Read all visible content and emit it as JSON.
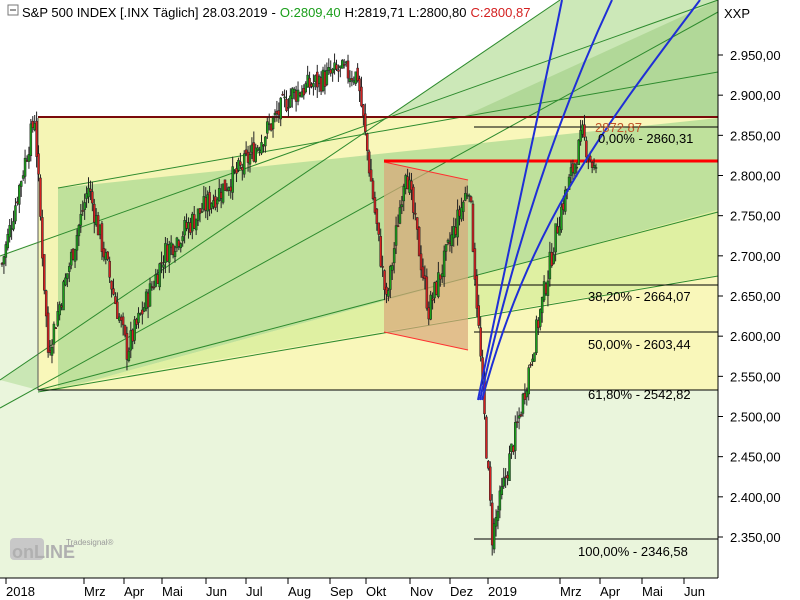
{
  "header": {
    "symbol": "S&P 500 INDEX [.INX",
    "interval": "Täglich]",
    "date": "28.03.2019",
    "open": "O:2809,40",
    "high": "H:2819,71",
    "low": "L:2800,80",
    "close": "C:2800,87",
    "exchange": "XXP"
  },
  "watermark": {
    "brand_small": "Tradesignal®",
    "brand": "onLINE"
  },
  "colors": {
    "up_candle": "#1a9e1a",
    "down_candle": "#d42020",
    "resistance_line": "#ff0000",
    "top_line": "#7a0a0a",
    "trendlines": "#1f2fd6",
    "channel_fill": "#a9d884",
    "flag_fill": "#d9a77a"
  },
  "chart_data": {
    "type": "candlestick",
    "title": "S&P 500 INDEX [.INX Täglich] 28.03.2019",
    "y_axis": {
      "min": 2320,
      "max": 3000,
      "ticks": [
        "2.350,00",
        "2.400,00",
        "2.450,00",
        "2.500,00",
        "2.550,00",
        "2.600,00",
        "2.650,00",
        "2.700,00",
        "2.750,00",
        "2.800,00",
        "2.850,00",
        "2.900,00",
        "2.950,00"
      ]
    },
    "x_axis": {
      "labels": [
        "2018",
        "Mrz",
        "Apr",
        "Mai",
        "Jun",
        "Jul",
        "Aug",
        "Sep",
        "Okt",
        "Nov",
        "Dez",
        "2019",
        "Mrz",
        "Apr",
        "Mai",
        "Jun"
      ]
    },
    "last_bar": {
      "open": 2809.4,
      "high": 2819.71,
      "low": 2800.8,
      "close": 2800.87
    },
    "price_path": [
      {
        "month": "2018-01",
        "close": 2690
      },
      {
        "month": "2018-01-26",
        "close": 2872
      },
      {
        "month": "2018-02-08",
        "close": 2581
      },
      {
        "month": "2018-03",
        "close": 2786
      },
      {
        "month": "2018-04",
        "close": 2582
      },
      {
        "month": "2018-05",
        "close": 2705
      },
      {
        "month": "2018-06",
        "close": 2760
      },
      {
        "month": "2018-07",
        "close": 2810
      },
      {
        "month": "2018-08",
        "close": 2900
      },
      {
        "month": "2018-09-20",
        "close": 2930
      },
      {
        "month": "2018-10-03",
        "close": 2925
      },
      {
        "month": "2018-10-29",
        "close": 2641
      },
      {
        "month": "2018-11-07",
        "close": 2813
      },
      {
        "month": "2018-11-23",
        "close": 2632
      },
      {
        "month": "2018-12-03",
        "close": 2790
      },
      {
        "month": "2018-12-24",
        "close": 2351
      },
      {
        "month": "2019-01",
        "close": 2510
      },
      {
        "month": "2019-02",
        "close": 2750
      },
      {
        "month": "2019-03",
        "close": 2850
      },
      {
        "month": "2019-03-28",
        "close": 2800.87
      }
    ],
    "annotations": {
      "price_label": "2872,87",
      "fibonacci": [
        {
          "label": "0,00% - 2860,31",
          "value": 2860.31
        },
        {
          "label": "38,20% - 2664,07",
          "value": 2664.07
        },
        {
          "label": "50,00% - 2603,44",
          "value": 2603.44
        },
        {
          "label": "61,80% - 2542,82",
          "value": 2542.82
        },
        {
          "label": "100,00% - 2346,58",
          "value": 2346.58
        }
      ],
      "resistance": 2816,
      "top_level": 2872.87
    }
  }
}
